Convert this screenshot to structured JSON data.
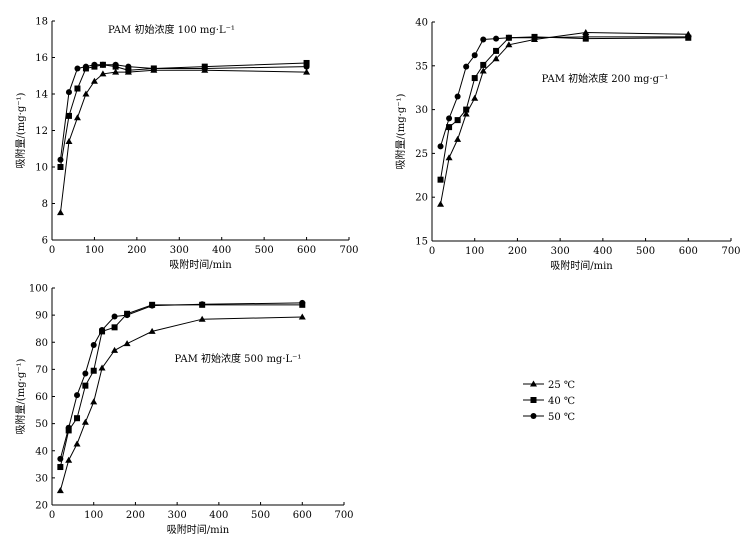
{
  "legend": {
    "entries": [
      {
        "label": "25 ℃",
        "marker": "triangle"
      },
      {
        "label": "40 ℃",
        "marker": "square"
      },
      {
        "label": "50 ℃",
        "marker": "circle"
      }
    ]
  },
  "colors": {
    "line": "#000000",
    "background": "#ffffff"
  },
  "chart_data": [
    {
      "type": "line",
      "title": "PAM 初始浓度 100 mg·L⁻¹",
      "xlabel": "吸附时间/min",
      "ylabel": "吸附量/(mg·g⁻¹)",
      "xlim": [
        0,
        700
      ],
      "ylim": [
        6,
        18
      ],
      "xticks": [
        0,
        100,
        200,
        300,
        400,
        500,
        600,
        700
      ],
      "yticks": [
        6,
        8,
        10,
        12,
        14,
        16,
        18
      ],
      "series": [
        {
          "name": "25 ℃",
          "marker": "triangle",
          "x": [
            20,
            40,
            60,
            80,
            100,
            120,
            150,
            180,
            240,
            360,
            600
          ],
          "y": [
            7.5,
            11.4,
            12.7,
            14.0,
            14.7,
            15.1,
            15.2,
            15.2,
            15.3,
            15.3,
            15.2
          ]
        },
        {
          "name": "40 ℃",
          "marker": "square",
          "x": [
            20,
            40,
            60,
            80,
            100,
            120,
            150,
            180,
            240,
            360,
            600
          ],
          "y": [
            10.0,
            12.8,
            14.3,
            15.4,
            15.5,
            15.6,
            15.5,
            15.3,
            15.4,
            15.5,
            15.7
          ]
        },
        {
          "name": "50 ℃",
          "marker": "circle",
          "x": [
            20,
            40,
            60,
            80,
            100,
            120,
            150,
            180,
            240,
            360,
            600
          ],
          "y": [
            10.4,
            14.1,
            15.4,
            15.5,
            15.6,
            15.6,
            15.6,
            15.5,
            15.4,
            15.4,
            15.5
          ]
        }
      ]
    },
    {
      "type": "line",
      "title": "PAM 初始浓度 200 mg·g⁻¹",
      "xlabel": "吸附时间/min",
      "ylabel": "吸附量/(mg·g⁻¹)",
      "xlim": [
        0,
        700
      ],
      "ylim": [
        15,
        40
      ],
      "xticks": [
        0,
        100,
        200,
        300,
        400,
        500,
        600,
        700
      ],
      "yticks": [
        15,
        20,
        25,
        30,
        35,
        40
      ],
      "series": [
        {
          "name": "25 ℃",
          "marker": "triangle",
          "x": [
            20,
            40,
            60,
            80,
            100,
            120,
            150,
            180,
            240,
            360,
            600
          ],
          "y": [
            19.2,
            24.5,
            26.6,
            29.5,
            31.3,
            34.4,
            35.8,
            37.4,
            38.0,
            38.8,
            38.6
          ]
        },
        {
          "name": "40 ℃",
          "marker": "square",
          "x": [
            20,
            40,
            60,
            80,
            100,
            120,
            150,
            180,
            240,
            360,
            600
          ],
          "y": [
            22.0,
            28.0,
            28.8,
            30.0,
            33.6,
            35.1,
            36.7,
            38.2,
            38.3,
            38.1,
            38.2
          ]
        },
        {
          "name": "50 ℃",
          "marker": "circle",
          "x": [
            20,
            40,
            60,
            80,
            100,
            120,
            150,
            180,
            240,
            360,
            600
          ],
          "y": [
            25.8,
            29.0,
            31.5,
            34.9,
            36.2,
            38.0,
            38.1,
            38.2,
            38.2,
            38.3,
            38.3
          ]
        }
      ]
    },
    {
      "type": "line",
      "title": "PAM 初始浓度 500 mg·L⁻¹",
      "xlabel": "吸附时间/min",
      "ylabel": "吸附量/(mg·g⁻¹)",
      "xlim": [
        0,
        700
      ],
      "ylim": [
        20,
        100
      ],
      "xticks": [
        0,
        100,
        200,
        300,
        400,
        500,
        600,
        700
      ],
      "yticks": [
        20,
        30,
        40,
        50,
        60,
        70,
        80,
        90,
        100
      ],
      "series": [
        {
          "name": "25 ℃",
          "marker": "triangle",
          "x": [
            20,
            40,
            60,
            80,
            100,
            120,
            150,
            180,
            240,
            360,
            600
          ],
          "y": [
            25.3,
            36.5,
            42.5,
            50.5,
            58.0,
            70.5,
            77.0,
            79.5,
            84.0,
            88.5,
            89.3
          ]
        },
        {
          "name": "40 ℃",
          "marker": "square",
          "x": [
            20,
            40,
            60,
            80,
            100,
            120,
            150,
            180,
            240,
            360,
            600
          ],
          "y": [
            34.0,
            47.5,
            52.0,
            64.0,
            69.5,
            84.0,
            85.5,
            90.5,
            93.8,
            93.8,
            93.8
          ]
        },
        {
          "name": "50 ℃",
          "marker": "circle",
          "x": [
            20,
            40,
            60,
            80,
            100,
            120,
            150,
            180,
            240,
            360,
            600
          ],
          "y": [
            37.0,
            48.5,
            60.5,
            68.5,
            79.0,
            84.5,
            89.5,
            90.0,
            93.5,
            94.0,
            94.5
          ]
        }
      ]
    }
  ]
}
